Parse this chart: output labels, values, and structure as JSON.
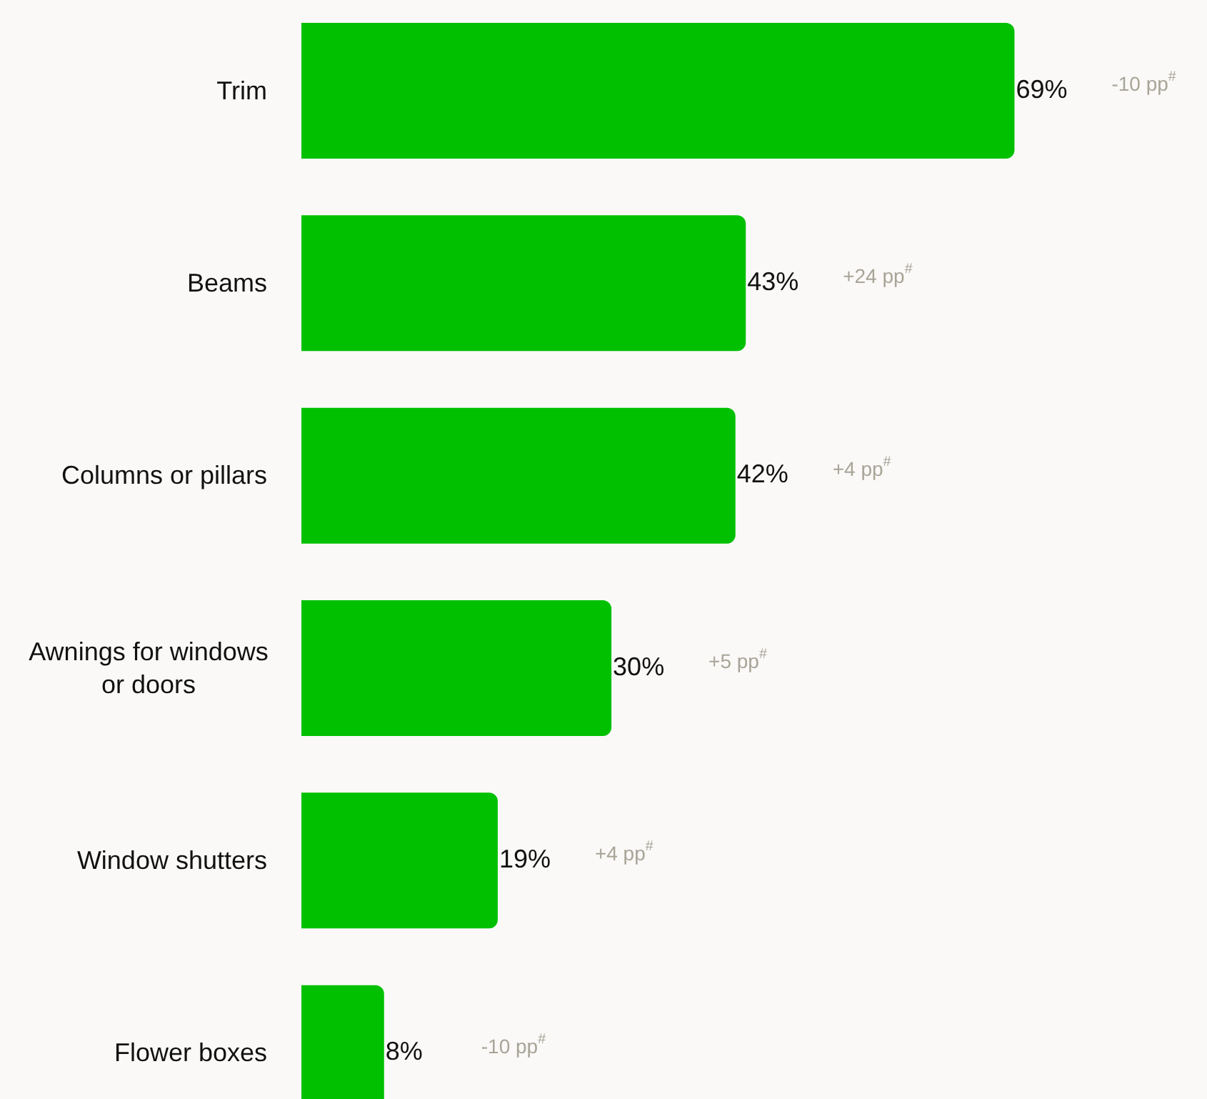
{
  "chart_data": {
    "type": "bar",
    "orientation": "horizontal",
    "categories": [
      "Trim",
      "Beams",
      "Columns or pillars",
      "Awnings for windows or doors",
      "Window shutters",
      "Flower boxes"
    ],
    "values": [
      69,
      43,
      42,
      30,
      19,
      8
    ],
    "value_labels": [
      "69%",
      "43%",
      "42%",
      "30%",
      "19%",
      "8%"
    ],
    "color": "#00c000",
    "annotations": [
      "-10 pp$^{#}$",
      "+24 pp$^{#}$",
      "+4 pp$^{#}$",
      "+5 pp$^{#}$",
      "+4 pp$^{#}$",
      "-10 pp$^{#}$"
    ],
    "grid": false,
    "legend": false
  }
}
